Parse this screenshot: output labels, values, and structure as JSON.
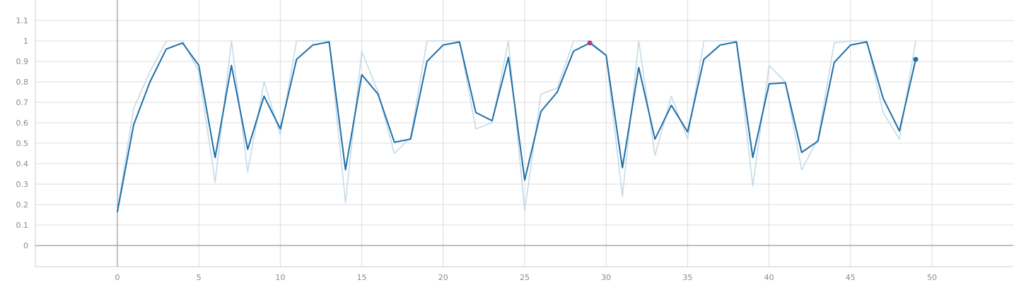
{
  "chart_data": {
    "type": "line",
    "title": "",
    "xlabel": "",
    "ylabel": "",
    "xlim": [
      -5,
      55
    ],
    "ylim": [
      -0.1,
      1.15
    ],
    "x_ticks": [
      0,
      5,
      10,
      15,
      20,
      25,
      30,
      35,
      40,
      45,
      50
    ],
    "y_ticks": [
      0,
      0.1,
      0.2,
      0.3,
      0.4,
      0.5,
      0.6,
      0.7,
      0.8,
      0.9,
      1,
      1.1
    ],
    "x_tick_labels": [
      "0",
      "5",
      "10",
      "15",
      "20",
      "25",
      "30",
      "35",
      "40",
      "45",
      "50"
    ],
    "y_tick_labels": [
      "0",
      "0.1",
      "0.2",
      "0.3",
      "0.4",
      "0.5",
      "0.6",
      "0.7",
      "0.8",
      "0.9",
      "1",
      "1.1"
    ],
    "grid": true,
    "series": [
      {
        "role": "raw",
        "color": "#c5dbe8",
        "x": [
          0,
          1,
          2,
          3,
          4,
          5,
          6,
          7,
          8,
          9,
          10,
          11,
          12,
          13,
          14,
          15,
          16,
          17,
          18,
          19,
          20,
          21,
          22,
          23,
          24,
          25,
          26,
          27,
          28,
          29,
          30,
          31,
          32,
          33,
          34,
          35,
          36,
          37,
          38,
          39,
          40,
          41,
          42,
          43,
          44,
          45,
          46,
          47,
          48,
          49
        ],
        "values": [
          0.17,
          0.67,
          0.85,
          1.0,
          1.0,
          0.85,
          0.31,
          1.0,
          0.36,
          0.8,
          0.54,
          1.0,
          1.0,
          1.0,
          0.21,
          0.95,
          0.75,
          0.45,
          0.53,
          1.0,
          1.0,
          1.0,
          0.57,
          0.6,
          1.0,
          0.17,
          0.74,
          0.77,
          1.0,
          1.0,
          0.93,
          0.24,
          1.0,
          0.44,
          0.73,
          0.52,
          1.0,
          1.0,
          1.0,
          0.29,
          0.88,
          0.8,
          0.37,
          0.52,
          0.99,
          1.0,
          1.0,
          0.65,
          0.52,
          1.0
        ]
      },
      {
        "role": "smoothed",
        "color": "#1f6fa8",
        "x": [
          0,
          1,
          2,
          3,
          4,
          5,
          6,
          7,
          8,
          9,
          10,
          11,
          12,
          13,
          14,
          15,
          16,
          17,
          18,
          19,
          20,
          21,
          22,
          23,
          24,
          25,
          26,
          27,
          28,
          29,
          30,
          31,
          32,
          33,
          34,
          35,
          36,
          37,
          38,
          39,
          40,
          41,
          42,
          43,
          44,
          45,
          46,
          47,
          48,
          49
        ],
        "values": [
          0.165,
          0.59,
          0.8,
          0.96,
          0.99,
          0.88,
          0.43,
          0.88,
          0.47,
          0.73,
          0.57,
          0.91,
          0.98,
          0.995,
          0.37,
          0.835,
          0.74,
          0.505,
          0.52,
          0.9,
          0.98,
          0.995,
          0.65,
          0.61,
          0.92,
          0.32,
          0.655,
          0.75,
          0.95,
          0.99,
          0.93,
          0.38,
          0.87,
          0.52,
          0.685,
          0.555,
          0.91,
          0.98,
          0.995,
          0.43,
          0.79,
          0.795,
          0.455,
          0.51,
          0.895,
          0.98,
          0.995,
          0.72,
          0.56,
          0.91
        ]
      }
    ],
    "highlight_points": [
      {
        "x": 29,
        "y": 0.99,
        "color": "#b0408e"
      },
      {
        "x": 49,
        "y": 0.91,
        "color": "#1f6fa8"
      }
    ]
  }
}
